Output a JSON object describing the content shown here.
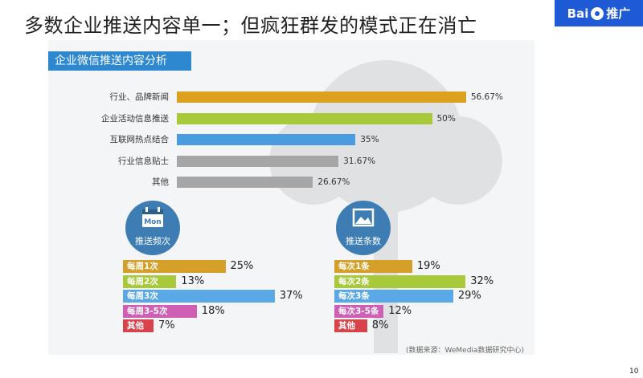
{
  "page_title": "多数企业推送内容单一；但疯狂群发的模式正在消亡",
  "logo": {
    "text": "Bai",
    "suffix": "推广"
  },
  "section_header": "企业微信推送内容分析",
  "chart_data": [
    {
      "type": "bar",
      "orientation": "horizontal",
      "categories": [
        "行业、品牌新闻",
        "企业活动信息推送",
        "互联网热点结合",
        "行业信息贴士",
        "其他"
      ],
      "values": [
        56.67,
        50,
        35,
        31.67,
        26.67
      ],
      "value_labels": [
        "56.67%",
        "50%",
        "35%",
        "31.67%",
        "26.67%"
      ],
      "colors": [
        "#dba11f",
        "#a8c93a",
        "#4a9be0",
        "#a6a6a6",
        "#a6a6a6"
      ],
      "xlim": [
        0,
        100
      ]
    },
    {
      "type": "bar",
      "orientation": "horizontal",
      "title": "推送频次",
      "categories": [
        "每周1次",
        "每周2次",
        "每周3次",
        "每周3-5次",
        "其他"
      ],
      "values": [
        25,
        13,
        37,
        18,
        7
      ],
      "value_labels": [
        "25%",
        "13%",
        "37%",
        "18%",
        "7%"
      ],
      "colors": [
        "#d5a02a",
        "#a8c93a",
        "#5aa8e6",
        "#cf5fb5",
        "#d8434b"
      ],
      "xlim": [
        0,
        100
      ]
    },
    {
      "type": "bar",
      "orientation": "horizontal",
      "title": "推送条数",
      "categories": [
        "每次1条",
        "每次2条",
        "每次3条",
        "每次3-5条",
        "其他"
      ],
      "values": [
        19,
        32,
        29,
        12,
        8
      ],
      "value_labels": [
        "19%",
        "32%",
        "29%",
        "12%",
        "8%"
      ],
      "colors": [
        "#d5a02a",
        "#a8c93a",
        "#5aa8e6",
        "#cf5fb5",
        "#d8434b"
      ],
      "xlim": [
        0,
        100
      ]
    }
  ],
  "freq_icon": {
    "text": "Mon",
    "icon": "calendar-icon"
  },
  "count_icon": {
    "icon": "picture-icon"
  },
  "source": "(数据来源：WeMedia数据研究中心)",
  "page_number": "10"
}
